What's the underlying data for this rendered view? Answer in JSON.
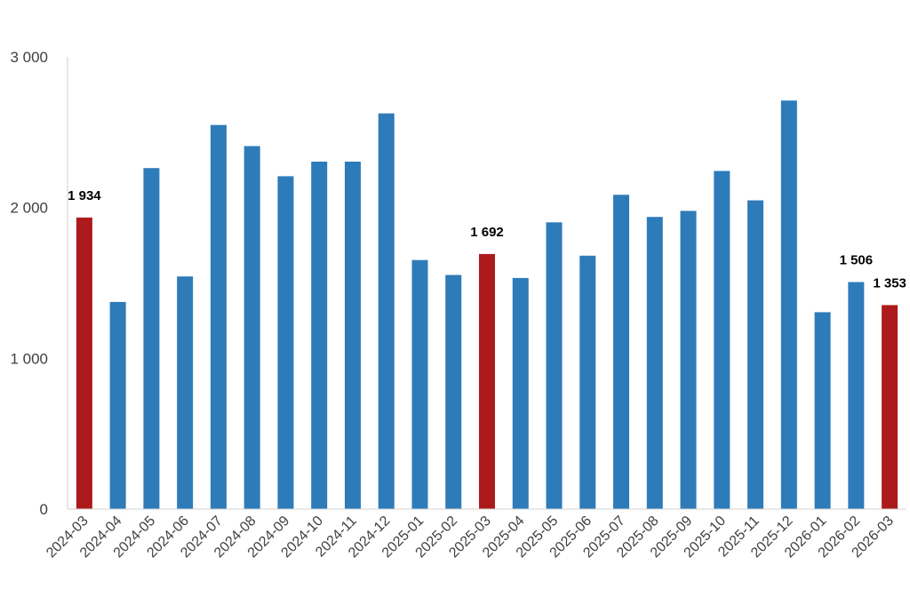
{
  "chart_data": {
    "type": "bar",
    "title": "",
    "xlabel": "",
    "ylabel": "",
    "ylim": [
      0,
      3000
    ],
    "y_ticks": [
      {
        "value": 0,
        "label": "0"
      },
      {
        "value": 1000,
        "label": "1 000"
      },
      {
        "value": 2000,
        "label": "2 000"
      },
      {
        "value": 3000,
        "label": "3 000"
      }
    ],
    "grid": false,
    "legend": "none",
    "colors": {
      "default": "#2e7bb9",
      "highlight": "#ad1a1c",
      "axis": "#d0d0d0"
    },
    "categories": [
      "2024-03",
      "2024-04",
      "2024-05",
      "2024-06",
      "2024-07",
      "2024-08",
      "2024-09",
      "2024-10",
      "2024-11",
      "2024-12",
      "2025-01",
      "2025-02",
      "2025-03",
      "2025-04",
      "2025-05",
      "2025-06",
      "2025-07",
      "2025-08",
      "2025-09",
      "2025-10",
      "2025-11",
      "2025-12",
      "2026-01",
      "2026-02",
      "2026-03"
    ],
    "values": [
      1934,
      1374,
      2262,
      1543,
      2548,
      2408,
      2208,
      2305,
      2305,
      2625,
      1652,
      1553,
      1692,
      1533,
      1902,
      1681,
      2085,
      1938,
      1978,
      2243,
      2048,
      2710,
      1306,
      1506,
      1353
    ],
    "highlighted": [
      0,
      12,
      24
    ],
    "data_labels": [
      {
        "index": 0,
        "text": "1 934"
      },
      {
        "index": 12,
        "text": "1 692"
      },
      {
        "index": 23,
        "text": "1 506"
      },
      {
        "index": 24,
        "text": "1 353"
      }
    ]
  }
}
